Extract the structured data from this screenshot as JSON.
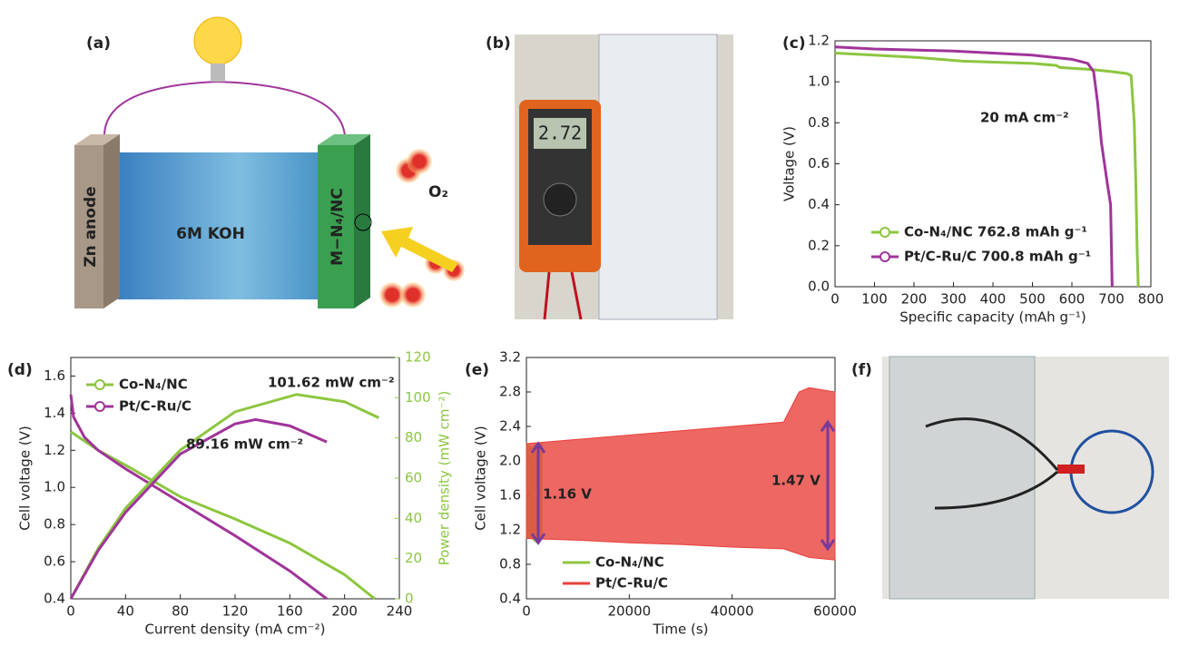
{
  "panels": {
    "a": {
      "label": "(a)",
      "anode": "Zn anode",
      "electrolyte": "6M KOH",
      "cathode": "M−N₄/NC",
      "gas": "O₂"
    },
    "b": {
      "label": "(b)",
      "display": "2.72"
    },
    "f": {
      "label": "(f)"
    }
  },
  "chart_data": [
    {
      "type": "line",
      "label": "(c)",
      "xlabel": "Specific capacity (mAh g⁻¹)",
      "ylabel": "Voltage (V)",
      "xlim": [
        0,
        800
      ],
      "ylim": [
        0,
        1.2
      ],
      "xticks": [
        0,
        100,
        200,
        300,
        400,
        500,
        600,
        700,
        800
      ],
      "yticks": [
        {
          "value": 0,
          "label": "0.0"
        },
        0.2,
        0.4,
        0.6,
        0.8,
        {
          "value": 1,
          "label": "1.0"
        },
        1.2
      ],
      "annotations": [
        "20 mA cm⁻²"
      ],
      "series": [
        {
          "name": "Co-N₄/NC 762.8 mAh g⁻¹",
          "color": "#8cc63f",
          "x": [
            0,
            100,
            200,
            330,
            340,
            500,
            560,
            570,
            650,
            700,
            740,
            750,
            758,
            762,
            765,
            768
          ],
          "values": [
            1.14,
            1.13,
            1.12,
            1.1,
            1.1,
            1.09,
            1.08,
            1.07,
            1.06,
            1.05,
            1.04,
            1.03,
            0.8,
            0.5,
            0.2,
            0
          ]
        },
        {
          "name": "Pt/C-Ru/C 700.8 mAh g⁻¹",
          "color": "#a0349a",
          "x": [
            0,
            100,
            200,
            300,
            400,
            500,
            600,
            640,
            655,
            665,
            675,
            690,
            698,
            700,
            702
          ],
          "values": [
            1.17,
            1.16,
            1.155,
            1.15,
            1.14,
            1.13,
            1.11,
            1.09,
            1.05,
            0.9,
            0.7,
            0.5,
            0.4,
            0.2,
            0
          ]
        }
      ]
    },
    {
      "type": "line",
      "label": "(d)",
      "xlabel": "Current density (mA cm⁻²)",
      "ylabel": "Cell voltage (V)",
      "y2label": "Power density (mW cm⁻²)",
      "xlim": [
        0,
        240
      ],
      "ylim": [
        0.4,
        1.7
      ],
      "y2lim": [
        0,
        120
      ],
      "xticks": [
        0,
        40,
        80,
        120,
        160,
        200,
        240
      ],
      "yticks": [
        0.4,
        0.6,
        0.8,
        {
          "value": 1,
          "label": "1.0"
        },
        1.2,
        1.4,
        1.6
      ],
      "y2ticks": [
        0,
        20,
        40,
        60,
        80,
        100,
        120
      ],
      "annotations": [
        "101.62 mW cm⁻²",
        "89.16 mW cm⁻²"
      ],
      "series": [
        {
          "name": "Co-N₄/NC",
          "color": "#8cc63f",
          "x": [
            0,
            10,
            20,
            40,
            80,
            120,
            160,
            200,
            222
          ],
          "values": [
            1.3,
            1.25,
            1.2,
            1.12,
            0.95,
            0.83,
            0.7,
            0.53,
            0.4
          ]
        },
        {
          "name": "Pt/C-Ru/C",
          "color": "#a0349a",
          "x": [
            0,
            2,
            10,
            20,
            40,
            80,
            120,
            160,
            187
          ],
          "values": [
            1.5,
            1.38,
            1.27,
            1.2,
            1.1,
            0.92,
            0.74,
            0.55,
            0.4
          ]
        },
        {
          "name": "Co-N₄/NC",
          "color": "#8cc63f",
          "axis": "y2",
          "x": [
            0,
            20,
            40,
            80,
            120,
            165,
            200,
            225
          ],
          "values": [
            0,
            25,
            45,
            74,
            93,
            101.62,
            98,
            90
          ]
        },
        {
          "name": "Pt/C-Ru/C",
          "color": "#a0349a",
          "axis": "y2",
          "x": [
            0,
            20,
            40,
            80,
            120,
            135,
            160,
            187
          ],
          "values": [
            0,
            24,
            43,
            72,
            87,
            89.16,
            86,
            78
          ]
        }
      ]
    },
    {
      "type": "area",
      "label": "(e)",
      "xlabel": "Time (s)",
      "ylabel": "Cell voltage (V)",
      "xlim": [
        0,
        60000
      ],
      "ylim": [
        0.4,
        3.2
      ],
      "xticks": [
        0,
        20000,
        40000,
        60000
      ],
      "yticks": [
        0.4,
        0.8,
        1.2,
        1.6,
        {
          "value": 2,
          "label": "2.0"
        },
        2.4,
        2.8,
        3.2
      ],
      "annotations": [
        "1.16 V",
        "1.47 V"
      ],
      "series": [
        {
          "name": "Co-N₄/NC",
          "color": "#8cc63f",
          "x": [
            0,
            1000,
            2000,
            3000
          ],
          "upper": [
            2.2,
            2.15,
            2.2,
            2.2
          ],
          "lower": [
            1.1,
            1.1,
            1.05,
            1.1
          ]
        },
        {
          "name": "Pt/C-Ru/C",
          "color": "#e8413c",
          "x": [
            0,
            10000,
            20000,
            30000,
            40000,
            50000,
            53000,
            55000,
            60000
          ],
          "upper": [
            2.2,
            2.25,
            2.3,
            2.35,
            2.4,
            2.45,
            2.8,
            2.85,
            2.8
          ],
          "lower": [
            1.1,
            1.08,
            1.05,
            1.03,
            1.0,
            0.98,
            0.92,
            0.88,
            0.85
          ]
        }
      ]
    }
  ]
}
